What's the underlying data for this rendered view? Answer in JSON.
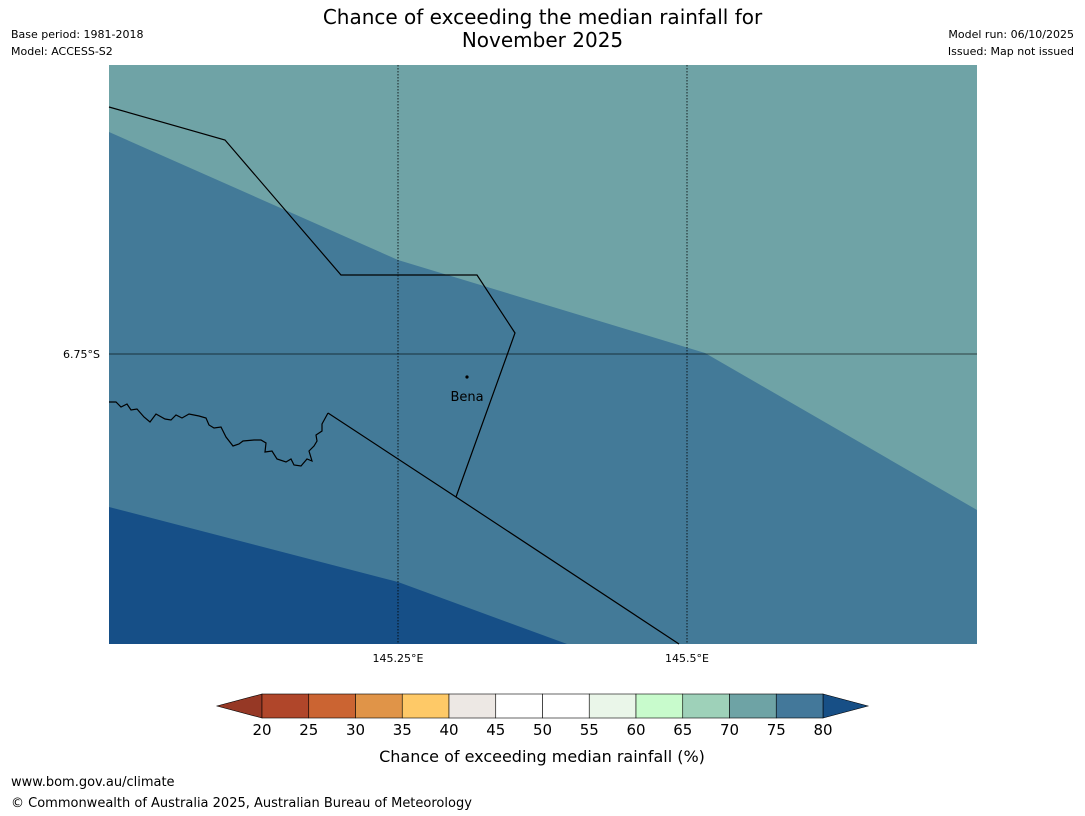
{
  "title": {
    "line1": "Chance of exceeding the median rainfall for",
    "line2": "November 2025"
  },
  "meta_left": {
    "base_period": "Base period: 1981-2018",
    "model": "Model: ACCESS-S2"
  },
  "meta_right": {
    "model_run": "Model run: 06/10/2025",
    "issued": "Issued: Map not issued"
  },
  "map": {
    "lat_label": "6.75°S",
    "lon_labels": [
      "145.25°E",
      "145.5°E"
    ],
    "place": "Bena",
    "colors": {
      "band_65_70": "#6fa3a6",
      "band_70_75": "#437a98",
      "band_75_80": "#164f87",
      "border": "#000000"
    }
  },
  "colorbar": {
    "ticks": [
      "20",
      "25",
      "30",
      "35",
      "40",
      "45",
      "50",
      "55",
      "60",
      "65",
      "70",
      "75",
      "80"
    ],
    "colors": [
      "#b0462a",
      "#cb6432",
      "#e09448",
      "#fec967",
      "#ede8e4",
      "#ffffff",
      "#ffffff",
      "#eaf6e9",
      "#c8fbcc",
      "#9ed1b9",
      "#6ea3a5",
      "#43789a"
    ],
    "under_color": "#963825",
    "over_color": "#174f86",
    "label": "Chance of exceeding median rainfall (%)"
  },
  "footer": {
    "url": "www.bom.gov.au/climate",
    "copyright": "© Commonwealth of Australia 2025, Australian Bureau of Meteorology"
  }
}
